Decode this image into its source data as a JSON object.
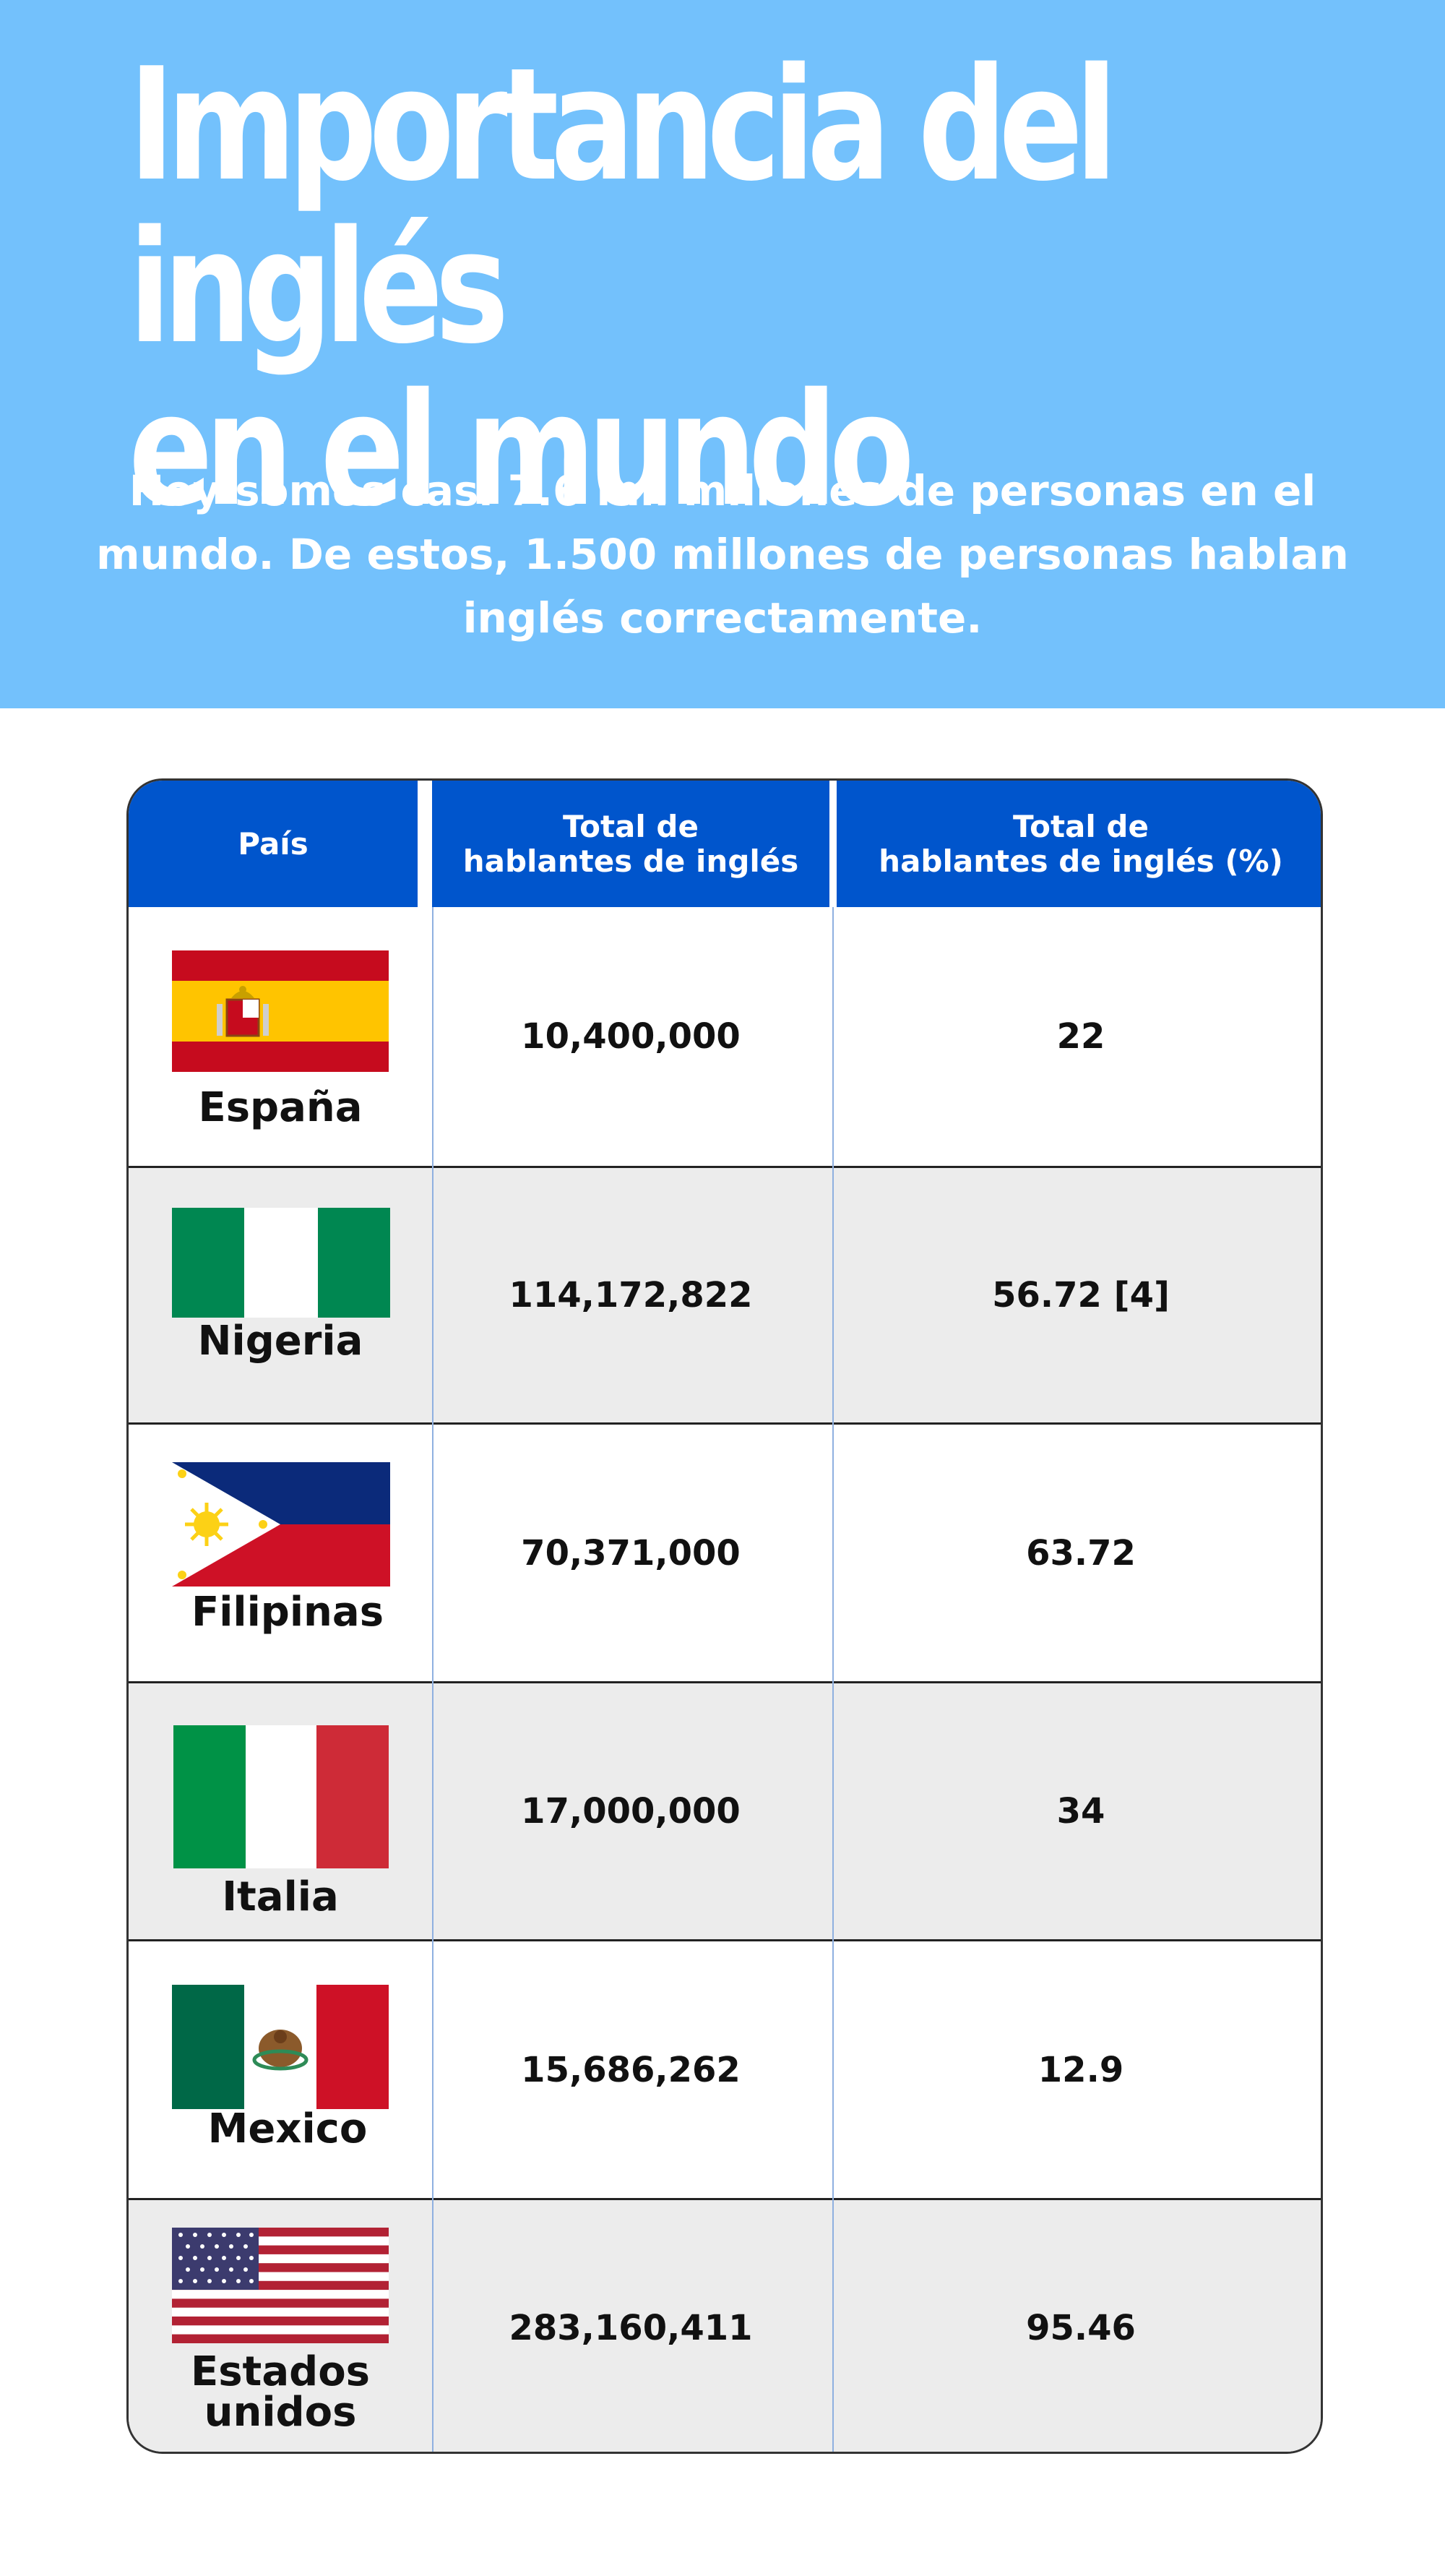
{
  "header": {
    "title_line1": "Importancia del inglés",
    "title_line2": "en el mundo",
    "subtitle_line1": "Hoy somos casi 7.6 mil millones de personas en el",
    "subtitle_line2": "mundo. De estos, 1.500 millones de personas hablan",
    "subtitle_line3": "inglés correctamente."
  },
  "table": {
    "columns": [
      {
        "lines": [
          "País"
        ]
      },
      {
        "lines": [
          "Total de",
          "hablantes de inglés"
        ]
      },
      {
        "lines": [
          "Total de",
          "hablantes de inglés (%)"
        ]
      }
    ],
    "rows": [
      {
        "country_lines": [
          "España"
        ],
        "flag": "spain-flag",
        "speakers": "10,400,000",
        "percent": "22"
      },
      {
        "country_lines": [
          "Nigeria"
        ],
        "flag": "nigeria-flag",
        "speakers": "114,172,822",
        "percent": "56.72 [4]"
      },
      {
        "country_lines": [
          "Filipinas"
        ],
        "flag": "philippines-flag",
        "speakers": "70,371,000",
        "percent": "63.72"
      },
      {
        "country_lines": [
          "Italia"
        ],
        "flag": "italy-flag",
        "speakers": "17,000,000",
        "percent": "34"
      },
      {
        "country_lines": [
          "Mexico"
        ],
        "flag": "mexico-flag",
        "speakers": "15,686,262",
        "percent": "12.9"
      },
      {
        "country_lines": [
          "Estados",
          "unidos"
        ],
        "flag": "usa-flag",
        "speakers": "283,160,411",
        "percent": "95.46"
      }
    ]
  },
  "colors": {
    "hero_background": "#73c1fc",
    "header_blue": "#0055cc",
    "alt_row": "#ececec"
  }
}
